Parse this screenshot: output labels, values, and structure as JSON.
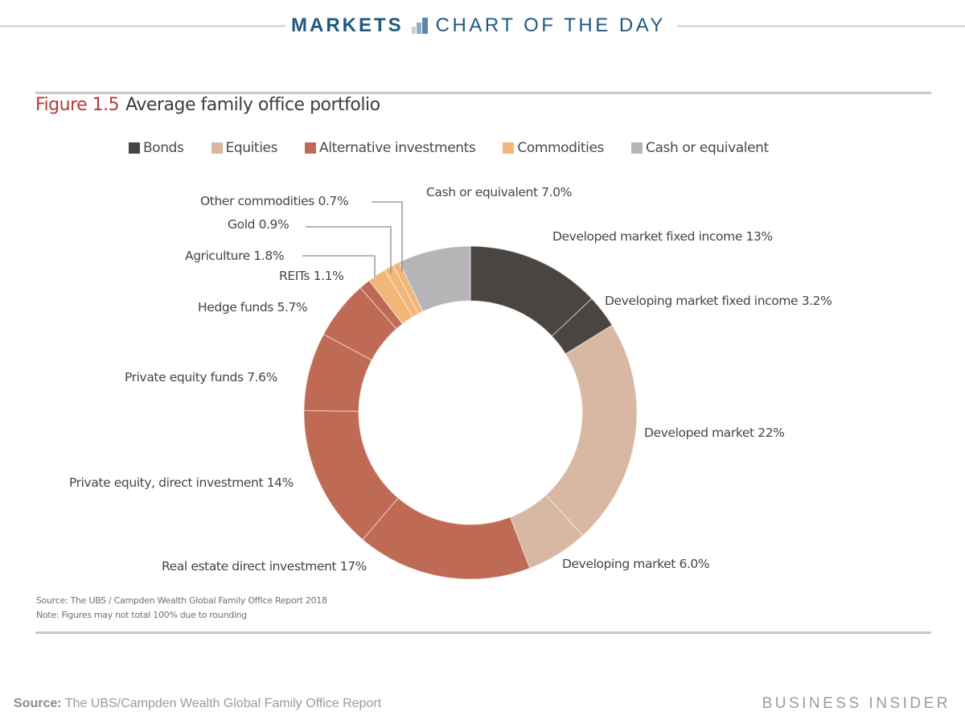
{
  "header": {
    "markets_label": "MARKETS",
    "icon": "bar-chart-icon",
    "chart_of_day_label": "CHART OF THE DAY",
    "color": "#1e5a7e"
  },
  "figure": {
    "number": "Figure 1.5",
    "title": "Average family office portfolio",
    "source_note": "Source: The UBS / Campden Wealth Global Family Office Report 2018",
    "rounding_note": "Note: Figures may not total 100% due to rounding"
  },
  "legend": [
    {
      "label": "Bonds",
      "color": "#4a4540"
    },
    {
      "label": "Equities",
      "color": "#d8b8a2"
    },
    {
      "label": "Alternative investments",
      "color": "#bf6a55"
    },
    {
      "label": "Commodities",
      "color": "#f2b679"
    },
    {
      "label": "Cash or equivalent",
      "color": "#b5b5b7"
    }
  ],
  "labels": {
    "other_commodities": "Other commodities 0.7%",
    "gold": "Gold 0.9%",
    "agriculture": "Agriculture 1.8%",
    "reits": "REITs 1.1%",
    "hedge_funds": "Hedge funds 5.7%",
    "pe_funds": "Private equity funds 7.6%",
    "pe_direct": "Private equity, direct investment 14%",
    "real_estate": "Real estate direct investment 17%",
    "dev_equities": "Developing market 6.0%",
    "dm_equities": "Developed market 22%",
    "em_fixed": "Developing market fixed income 3.2%",
    "dm_fixed": "Developed market fixed income 13%",
    "cash": "Cash or equivalent 7.0%"
  },
  "footer": {
    "source_label": "Source:",
    "source_text": "The UBS/Campden Wealth Global Family Office Report",
    "brand": "BUSINESS INSIDER"
  },
  "chart_data": {
    "type": "pie",
    "subtype": "donut",
    "title": "Figure 1.5 Average family office portfolio",
    "start_angle_deg": 0,
    "direction": "clockwise",
    "legend_position": "top",
    "categories": [
      "Bonds",
      "Equities",
      "Alternative investments",
      "Commodities",
      "Cash or equivalent"
    ],
    "slices": [
      {
        "label": "Developed market fixed income",
        "value": 13.0,
        "category": "Bonds"
      },
      {
        "label": "Developing market fixed income",
        "value": 3.2,
        "category": "Bonds"
      },
      {
        "label": "Developed market",
        "value": 22.0,
        "category": "Equities"
      },
      {
        "label": "Developing market",
        "value": 6.0,
        "category": "Equities"
      },
      {
        "label": "Real estate direct investment",
        "value": 17.0,
        "category": "Alternative investments"
      },
      {
        "label": "Private equity, direct investment",
        "value": 14.0,
        "category": "Alternative investments"
      },
      {
        "label": "Private equity funds",
        "value": 7.6,
        "category": "Alternative investments"
      },
      {
        "label": "Hedge funds",
        "value": 5.7,
        "category": "Alternative investments"
      },
      {
        "label": "REITs",
        "value": 1.1,
        "category": "Alternative investments"
      },
      {
        "label": "Agriculture",
        "value": 1.8,
        "category": "Commodities"
      },
      {
        "label": "Gold",
        "value": 0.9,
        "category": "Commodities"
      },
      {
        "label": "Other commodities",
        "value": 0.7,
        "category": "Commodities"
      },
      {
        "label": "Cash or equivalent",
        "value": 7.0,
        "category": "Cash or equivalent"
      }
    ],
    "note": "Figures may not total 100% due to rounding",
    "source": "The UBS / Campden Wealth Global Family Office Report 2018"
  }
}
